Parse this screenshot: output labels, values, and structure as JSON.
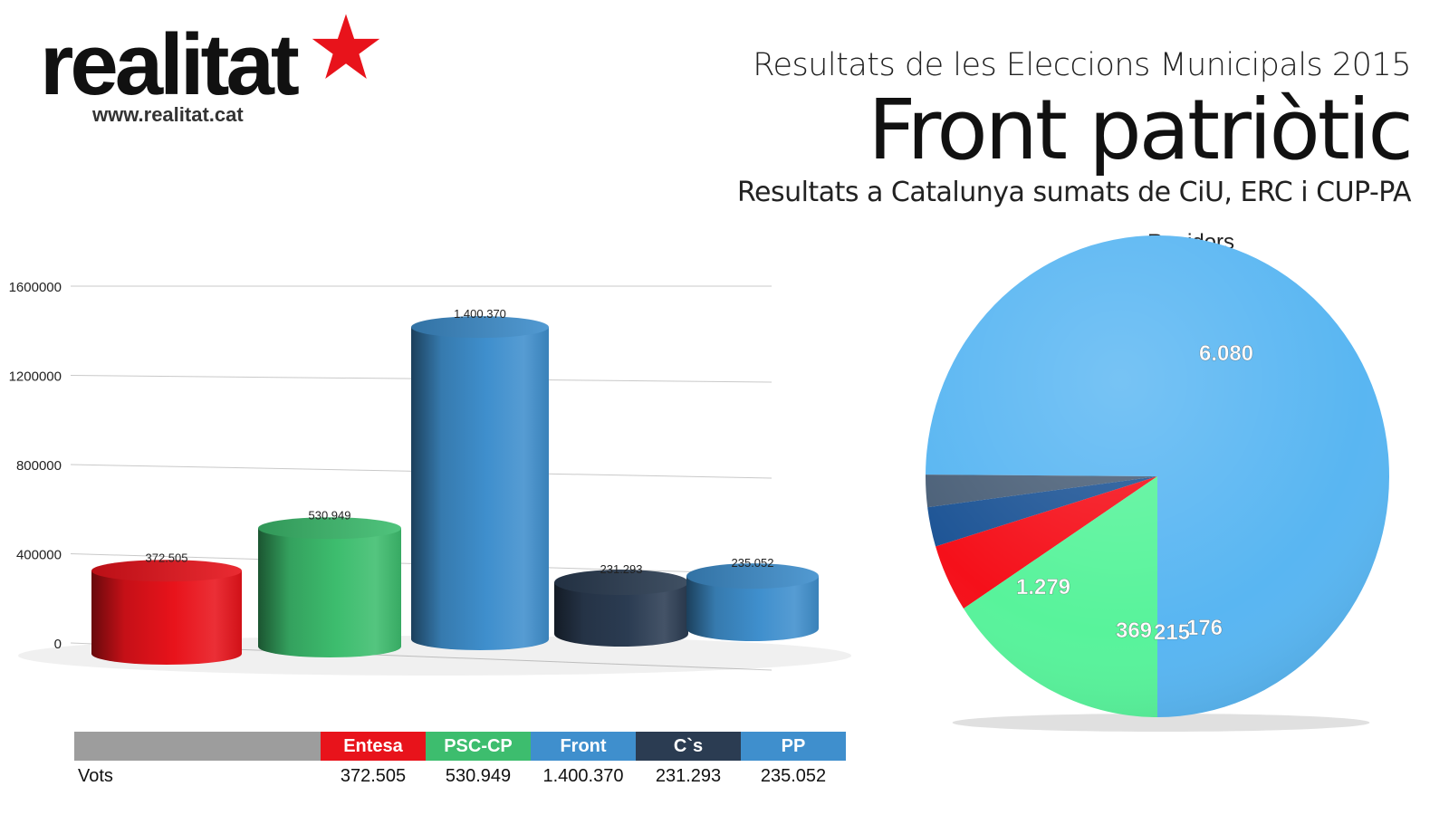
{
  "logo": {
    "word": "realitat",
    "url": "www.realitat.cat",
    "star_color": "#e8131b"
  },
  "header": {
    "supertitle": "Resultats de les Eleccions Municipals 2015",
    "title": "Front patriòtic",
    "subtitle": "Resultats a Catalunya sumats de CiU, ERC i CUP-PA"
  },
  "chart_data": [
    {
      "type": "bar",
      "style": "3d-cylinder",
      "categories": [
        "Entesa",
        "PSC-CP",
        "Front",
        "C`s",
        "PP"
      ],
      "values": [
        372505,
        530949,
        1400370,
        231293,
        235052
      ],
      "data_labels": [
        "372.505",
        "530.949",
        "1.400.370",
        "231.293",
        "235.052"
      ],
      "colors": [
        "#e8131b",
        "#3dbd6e",
        "#3f8fcd",
        "#2b3c52",
        "#3f8fcd"
      ],
      "ylim": [
        0,
        1600000
      ],
      "yticks": [
        0,
        400000,
        800000,
        1200000,
        1600000
      ],
      "ytick_labels": [
        "0",
        "400000",
        "800000",
        "1200000",
        "1600000"
      ],
      "grid": true,
      "table": {
        "row_label": "Vots",
        "headers": [
          "Entesa",
          "PSC-CP",
          "Front",
          "C`s",
          "PP"
        ],
        "values": [
          "372.505",
          "530.949",
          "1.400.370",
          "231.293",
          "235.052"
        ],
        "header_colors": [
          "#e8131b",
          "#3dbd6e",
          "#3f8fcd",
          "#2b3c52",
          "#3f8fcd"
        ]
      }
    },
    {
      "type": "pie",
      "title": "Regidors",
      "slices": [
        {
          "label": "6.080",
          "value": 6080,
          "color": "#59b6f2"
        },
        {
          "label": "176",
          "value": 176,
          "color": "#4c6179"
        },
        {
          "label": "215",
          "value": 215,
          "color": "#1e5596"
        },
        {
          "label": "369",
          "value": 369,
          "color": "#f5101a"
        },
        {
          "label": "1.279",
          "value": 1279,
          "color": "#58f39b"
        }
      ]
    }
  ]
}
